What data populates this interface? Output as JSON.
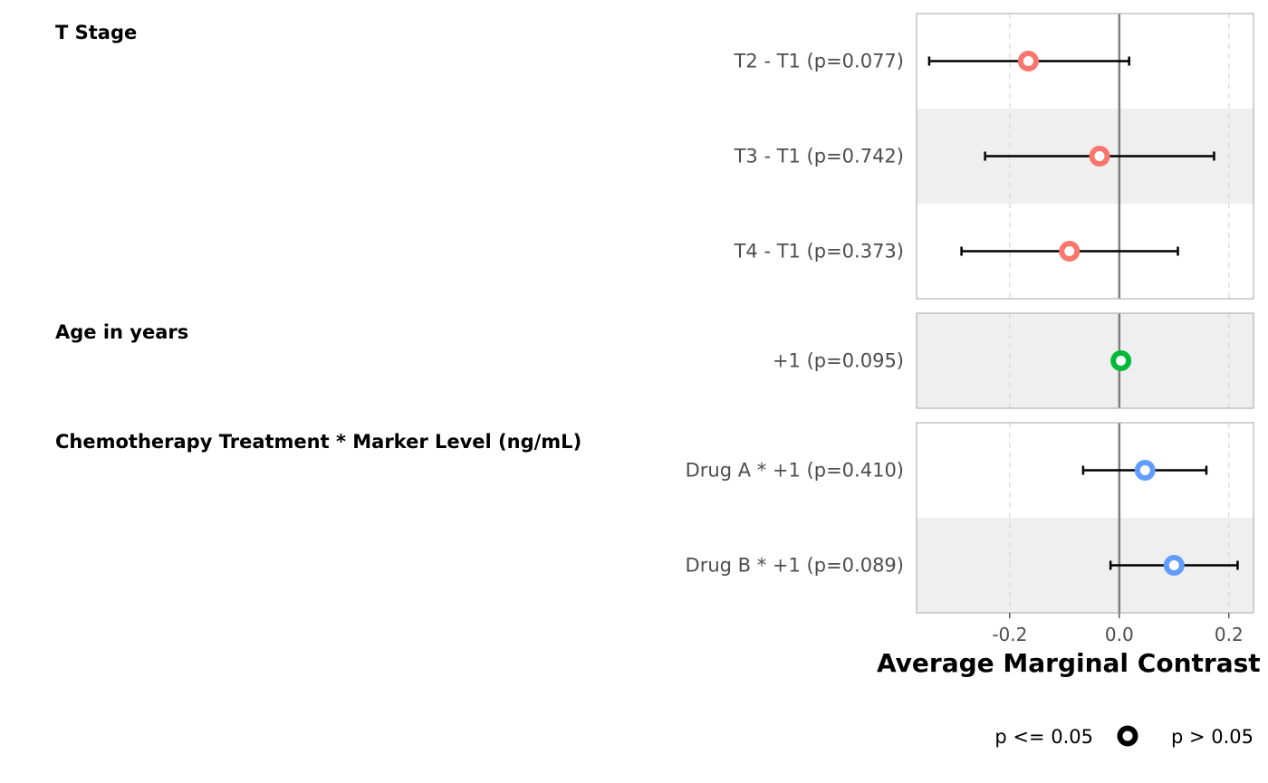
{
  "chart_data": {
    "type": "forest",
    "xlabel": "Average Marginal Contrast",
    "xlim": [
      -0.37,
      0.245
    ],
    "x_ticks": [
      -0.2,
      0.0,
      0.2
    ],
    "x_tick_labels": [
      "-0.2",
      "0.0",
      "0.2"
    ],
    "reference_line": 0,
    "gridlines": "dashed vertical at ticks",
    "groups": [
      {
        "title": "T Stage",
        "color": "#F8766D",
        "rows": [
          {
            "label": "T2 - T1 (p=0.077)",
            "estimate": -0.166,
            "lower": -0.347,
            "upper": 0.018,
            "p": 0.077
          },
          {
            "label": "T3 - T1 (p=0.742)",
            "estimate": -0.036,
            "lower": -0.245,
            "upper": 0.173,
            "p": 0.742
          },
          {
            "label": "T4 - T1 (p=0.373)",
            "estimate": -0.091,
            "lower": -0.288,
            "upper": 0.107,
            "p": 0.373
          }
        ]
      },
      {
        "title": "Age in years",
        "color": "#00BA38",
        "rows": [
          {
            "label": "+1 (p=0.095)",
            "estimate": 0.003,
            "lower": -0.001,
            "upper": 0.007,
            "p": 0.095
          }
        ]
      },
      {
        "title": "Chemotherapy Treatment * Marker Level (ng/mL)",
        "color": "#619CFF",
        "rows": [
          {
            "label": "Drug A * +1 (p=0.410)",
            "estimate": 0.047,
            "lower": -0.066,
            "upper": 0.159,
            "p": 0.41
          },
          {
            "label": "Drug B * +1 (p=0.089)",
            "estimate": 0.1,
            "lower": -0.016,
            "upper": 0.216,
            "p": 0.089
          }
        ]
      }
    ],
    "legend": {
      "position": "bottom-right",
      "items": [
        {
          "label": "p <= 0.05",
          "marker": "filled"
        },
        {
          "label": "p > 0.05",
          "marker": "hollow"
        }
      ]
    }
  }
}
